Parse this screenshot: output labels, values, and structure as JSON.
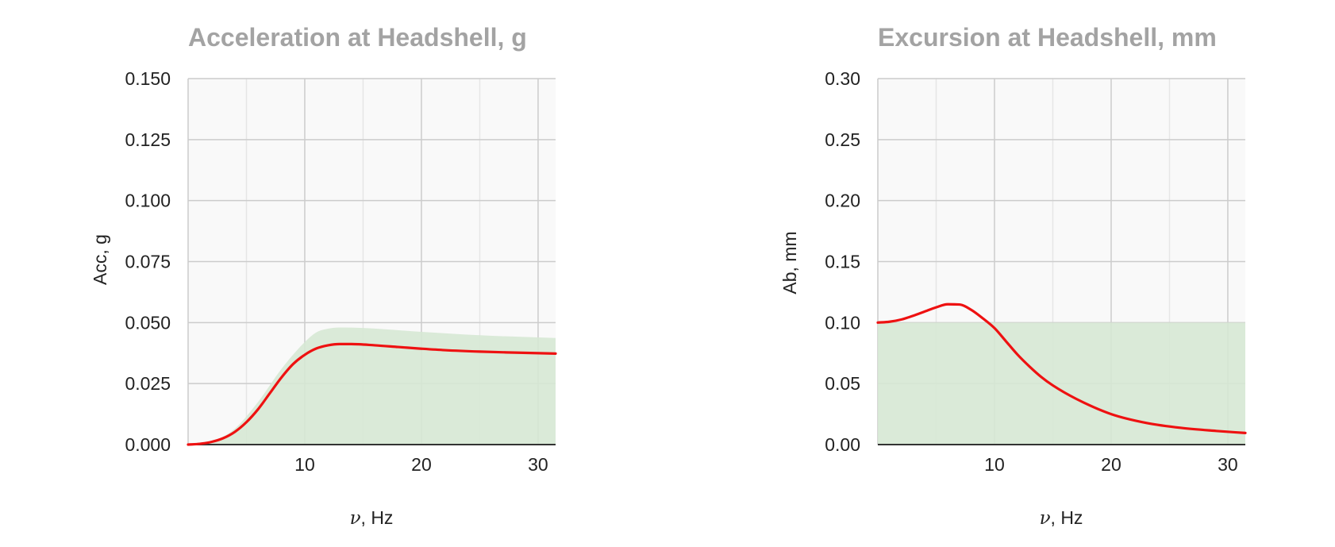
{
  "colors": {
    "curve": "#ee1111",
    "band_fill": "#d6e8d4",
    "plot_bg": "#f9f9f9",
    "grid_major": "#cccccc",
    "grid_minor": "#e6e6e6",
    "baseline": "#333333",
    "title": "#a3a3a3"
  },
  "chart_data": [
    {
      "type": "area",
      "title": "Acceleration at Headshell, g",
      "xlabel": {
        "symbol": "ν",
        "rest": ", Hz"
      },
      "ylabel": "Acc, g",
      "xlim": [
        0,
        31.5
      ],
      "ylim": [
        0,
        0.15
      ],
      "xticks": [
        10,
        20,
        30
      ],
      "xtick_labels": [
        "10",
        "20",
        "30"
      ],
      "yticks": [
        0,
        0.025,
        0.05,
        0.075,
        0.1,
        0.125,
        0.15
      ],
      "ytick_labels": [
        "0.000",
        "0.025",
        "0.050",
        "0.075",
        "0.100",
        "0.125",
        "0.150"
      ],
      "grid": true,
      "series": [
        {
          "kind": "band",
          "x": [
            0,
            2,
            4,
            6,
            8,
            10,
            11,
            12,
            13,
            15,
            20,
            25,
            31.5
          ],
          "y": [
            0,
            0.0012,
            0.0065,
            0.0175,
            0.031,
            0.042,
            0.046,
            0.0475,
            0.048,
            0.0478,
            0.0462,
            0.0448,
            0.0437
          ]
        },
        {
          "kind": "curve",
          "x": [
            0,
            1,
            2,
            3,
            4,
            5,
            6,
            7,
            8,
            9,
            10,
            11,
            12,
            13,
            14,
            16,
            18,
            20,
            22,
            25,
            28,
            31.5
          ],
          "y": [
            0,
            0.0003,
            0.0011,
            0.0026,
            0.0052,
            0.0092,
            0.0145,
            0.021,
            0.0275,
            0.033,
            0.0368,
            0.0394,
            0.0407,
            0.0412,
            0.0412,
            0.0407,
            0.04,
            0.0393,
            0.0387,
            0.0381,
            0.0377,
            0.0373
          ]
        }
      ]
    },
    {
      "type": "area",
      "title": "Excursion at Headshell, mm",
      "xlabel": {
        "symbol": "ν",
        "rest": ", Hz"
      },
      "ylabel": "Ab, mm",
      "xlim": [
        0,
        31.5
      ],
      "ylim": [
        0,
        0.3
      ],
      "xticks": [
        10,
        20,
        30
      ],
      "xtick_labels": [
        "10",
        "20",
        "30"
      ],
      "yticks": [
        0,
        0.05,
        0.1,
        0.15,
        0.2,
        0.25,
        0.3
      ],
      "ytick_labels": [
        "0.00",
        "0.05",
        "0.10",
        "0.15",
        "0.20",
        "0.25",
        "0.30"
      ],
      "grid": true,
      "series": [
        {
          "kind": "band",
          "x": [
            0,
            31.5
          ],
          "y": [
            0.1,
            0.1
          ]
        },
        {
          "kind": "curve",
          "x": [
            0,
            1,
            2,
            3,
            4,
            5,
            6,
            7,
            8,
            9,
            10,
            11,
            12,
            13,
            14,
            15,
            17,
            20,
            23,
            26,
            29,
            31.5
          ],
          "y": [
            0.1,
            0.1007,
            0.1025,
            0.1055,
            0.109,
            0.1125,
            0.115,
            0.1148,
            0.1105,
            0.1035,
            0.0955,
            0.0845,
            0.0735,
            0.064,
            0.0555,
            0.0485,
            0.0375,
            0.025,
            0.0178,
            0.0137,
            0.0112,
            0.0095
          ]
        }
      ]
    }
  ]
}
